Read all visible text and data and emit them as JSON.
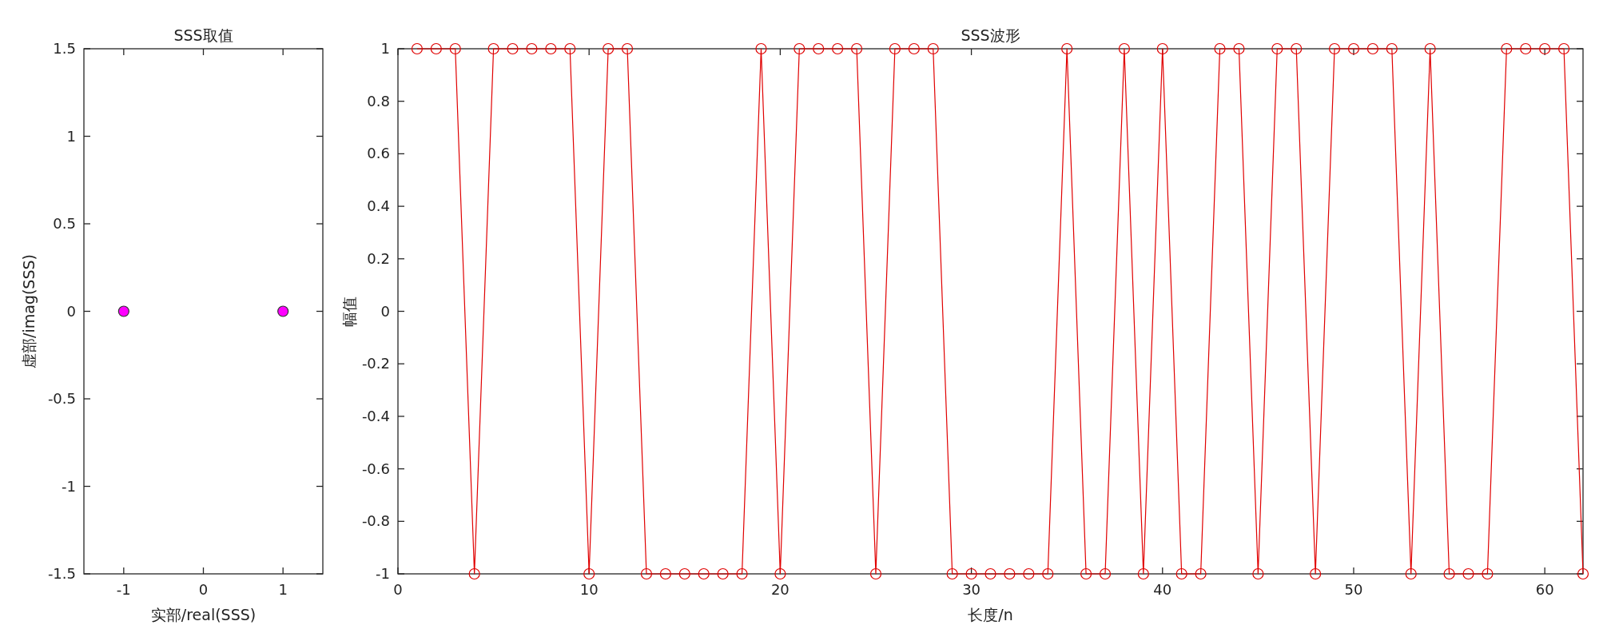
{
  "chart_data": [
    {
      "type": "scatter",
      "title": "SSS取值",
      "xlabel": "实部/real(SSS)",
      "ylabel": "虚部/imag(SSS)",
      "x": [
        -1,
        1
      ],
      "values": [
        0,
        0
      ],
      "color": "#ff00ff",
      "marker": "circle",
      "xlim": [
        -1.5,
        1.5
      ],
      "xticks": [
        -1,
        0,
        1
      ],
      "ylim": [
        -1.5,
        1.5
      ],
      "yticks": [
        -1.5,
        -1,
        -0.5,
        0,
        0.5,
        1,
        1.5
      ],
      "grid": false
    },
    {
      "type": "line",
      "title": "SSS波形",
      "xlabel": "长度/n",
      "ylabel": "幅值",
      "color": "#e00000",
      "marker": "circle",
      "x": [
        1,
        2,
        3,
        4,
        5,
        6,
        7,
        8,
        9,
        10,
        11,
        12,
        13,
        14,
        15,
        16,
        17,
        18,
        19,
        20,
        21,
        22,
        23,
        24,
        25,
        26,
        27,
        28,
        29,
        30,
        31,
        32,
        33,
        34,
        35,
        36,
        37,
        38,
        39,
        40,
        41,
        42,
        43,
        44,
        45,
        46,
        47,
        48,
        49,
        50,
        51,
        52,
        53,
        54,
        55,
        56,
        57,
        58,
        59,
        60,
        61,
        62
      ],
      "values": [
        1,
        1,
        1,
        -1,
        1,
        1,
        1,
        1,
        1,
        -1,
        1,
        1,
        -1,
        -1,
        -1,
        -1,
        -1,
        -1,
        1,
        -1,
        1,
        1,
        1,
        1,
        -1,
        1,
        1,
        1,
        -1,
        -1,
        -1,
        -1,
        -1,
        -1,
        1,
        -1,
        -1,
        1,
        -1,
        1,
        -1,
        -1,
        1,
        1,
        -1,
        1,
        1,
        -1,
        1,
        1,
        1,
        1,
        -1,
        1,
        -1,
        -1,
        -1,
        1,
        1,
        1,
        1,
        -1
      ],
      "xlim": [
        0,
        62
      ],
      "xticks": [
        0,
        10,
        20,
        30,
        40,
        50,
        60
      ],
      "ylim": [
        -1,
        1
      ],
      "yticks": [
        -1,
        -0.8,
        -0.6,
        -0.4,
        -0.2,
        0,
        0.2,
        0.4,
        0.6,
        0.8,
        1
      ],
      "grid": false
    }
  ]
}
